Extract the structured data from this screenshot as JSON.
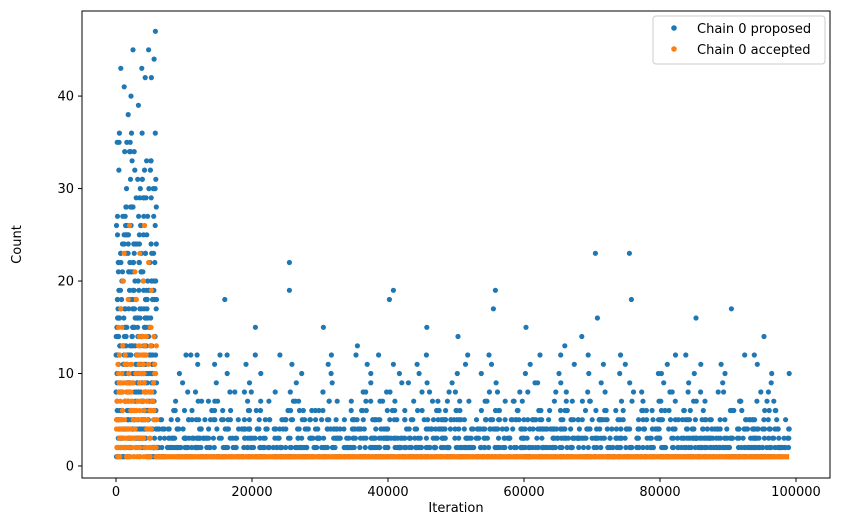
{
  "chart_data": {
    "type": "scatter",
    "title": "",
    "xlabel": "Iteration",
    "ylabel": "Count",
    "xlim": [
      -5000,
      105000
    ],
    "ylim": [
      -1.3,
      49.2
    ],
    "xticks": [
      0,
      20000,
      40000,
      60000,
      80000,
      100000
    ],
    "xtick_labels": [
      "0",
      "20000",
      "40000",
      "60000",
      "80000",
      "100000"
    ],
    "yticks": [
      0,
      10,
      20,
      30,
      40
    ],
    "ytick_labels": [
      "0",
      "10",
      "20",
      "30",
      "40"
    ],
    "grid": false,
    "legend_position": "top-right",
    "series": [
      {
        "name": "Chain 0 proposed",
        "color": "#1f77b4",
        "description_points": "dense bands",
        "bands": [
          {
            "x0": 0,
            "x1": 6000,
            "ymin": 1,
            "ymax": 36
          },
          {
            "x0": 6000,
            "x1": 99000,
            "ymin": 1,
            "ymax": 5
          }
        ],
        "points": [
          [
            2500,
            45
          ],
          [
            4800,
            45
          ],
          [
            5800,
            47
          ],
          [
            5600,
            44
          ],
          [
            3800,
            43
          ],
          [
            700,
            43
          ],
          [
            1200,
            41
          ],
          [
            5200,
            42
          ],
          [
            4300,
            42
          ],
          [
            2200,
            40
          ],
          [
            3300,
            39
          ],
          [
            1800,
            38
          ],
          [
            70500,
            23
          ],
          [
            75500,
            23
          ],
          [
            25500,
            22
          ],
          [
            25500,
            19
          ],
          [
            40800,
            19
          ],
          [
            40200,
            18
          ],
          [
            16000,
            18
          ],
          [
            55800,
            19
          ],
          [
            75800,
            18
          ],
          [
            90500,
            17
          ],
          [
            55500,
            17
          ],
          [
            20500,
            15
          ],
          [
            30500,
            15
          ],
          [
            45700,
            15
          ],
          [
            60300,
            15
          ],
          [
            85300,
            16
          ],
          [
            70800,
            16
          ],
          [
            50300,
            14
          ],
          [
            95300,
            14
          ],
          [
            66000,
            13
          ],
          [
            35500,
            13
          ],
          [
            10300,
            12
          ],
          [
            11000,
            12
          ],
          [
            15300,
            12
          ],
          [
            80200,
            10
          ],
          [
            99000,
            10
          ],
          [
            68500,
            14
          ],
          [
            43000,
            9
          ],
          [
            62000,
            9
          ],
          [
            78000,
            6
          ]
        ]
      },
      {
        "name": "Chain 0 accepted",
        "color": "#ff7f0e",
        "bands": [
          {
            "x0": 0,
            "x1": 6000,
            "ymin": 1,
            "ymax": 15
          }
        ],
        "points": [
          [
            2000,
            26
          ],
          [
            4200,
            26
          ],
          [
            1200,
            23
          ],
          [
            3500,
            23
          ],
          [
            4800,
            22
          ],
          [
            2800,
            21
          ],
          [
            1000,
            20
          ],
          [
            4000,
            20
          ],
          [
            5200,
            19
          ],
          [
            1800,
            18
          ],
          [
            3000,
            18
          ],
          [
            700,
            17
          ]
        ],
        "baseline": {
          "x0": 6000,
          "x1": 99000,
          "y": 1
        }
      }
    ]
  }
}
